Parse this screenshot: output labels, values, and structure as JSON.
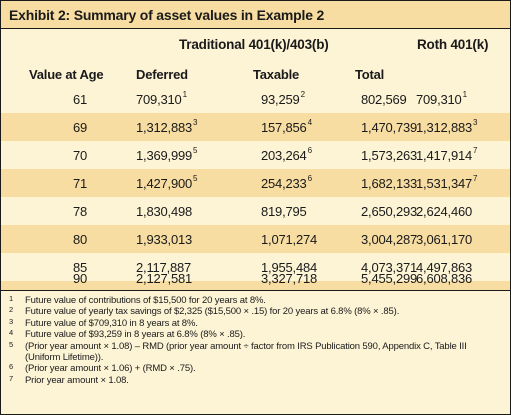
{
  "title": "Exhibit 2: Summary of asset values in Example 2",
  "group_headers": {
    "traditional": "Traditional 401(k)/403(b)",
    "roth": "Roth 401(k)"
  },
  "columns": [
    "Value at Age",
    "Deferred",
    "Taxable",
    "Total"
  ],
  "rows": [
    {
      "age": "61",
      "deferred": "709,310",
      "deferred_fn": "1",
      "taxable": "93,259",
      "taxable_fn": "2",
      "total": "802,569",
      "roth": "709,310",
      "roth_fn": "1"
    },
    {
      "age": "69",
      "deferred": "1,312,883",
      "deferred_fn": "3",
      "taxable": "157,856",
      "taxable_fn": "4",
      "total": "1,470,739",
      "roth": "1,312,883",
      "roth_fn": "3"
    },
    {
      "age": "70",
      "deferred": "1,369,999",
      "deferred_fn": "5",
      "taxable": "203,264",
      "taxable_fn": "6",
      "total": "1,573,263",
      "roth": "1,417,914",
      "roth_fn": "7"
    },
    {
      "age": "71",
      "deferred": "1,427,900",
      "deferred_fn": "5",
      "taxable": "254,233",
      "taxable_fn": "6",
      "total": "1,682,133",
      "roth": "1,531,347",
      "roth_fn": "7"
    },
    {
      "age": "78",
      "deferred": "1,830,498",
      "deferred_fn": "",
      "taxable": "819,795",
      "taxable_fn": "",
      "total": "2,650,293",
      "roth": "2,624,460",
      "roth_fn": ""
    },
    {
      "age": "80",
      "deferred": "1,933,013",
      "deferred_fn": "",
      "taxable": "1,071,274",
      "taxable_fn": "",
      "total": "3,004,287",
      "roth": "3,061,170",
      "roth_fn": ""
    },
    {
      "age": "85",
      "deferred": "2,117,887",
      "deferred_fn": "",
      "taxable": "1,955,484",
      "taxable_fn": "",
      "total": "4,073,371",
      "roth": "4,497,863",
      "roth_fn": ""
    },
    {
      "age": "90",
      "deferred": "2,127,581",
      "deferred_fn": "",
      "taxable": "3,327,718",
      "taxable_fn": "",
      "total": "5,455,299",
      "roth": "6,608,836",
      "roth_fn": ""
    }
  ],
  "footnotes": [
    {
      "num": "1",
      "text": "Future value of contributions of $15,500 for 20 years at 8%."
    },
    {
      "num": "2",
      "text": "Future value of yearly tax savings of $2,325 ($15,500 × .15) for 20 years at 6.8% (8% × .85)."
    },
    {
      "num": "3",
      "text": "Future value of $709,310 in 8 years at 8%."
    },
    {
      "num": "4",
      "text": "Future value of $93,259 in 8 years at 6.8% (8% × .85)."
    },
    {
      "num": "5",
      "text": "(Prior year amount × 1.08) – RMD (prior year amount ÷ factor from IRS Publication 590, Appendix C, Table III",
      "text2": "(Uniform Lifetime))."
    },
    {
      "num": "6",
      "text": "(Prior year amount × 1.06) + (RMD × .75)."
    },
    {
      "num": "7",
      "text": "Prior year amount × 1.08."
    }
  ]
}
